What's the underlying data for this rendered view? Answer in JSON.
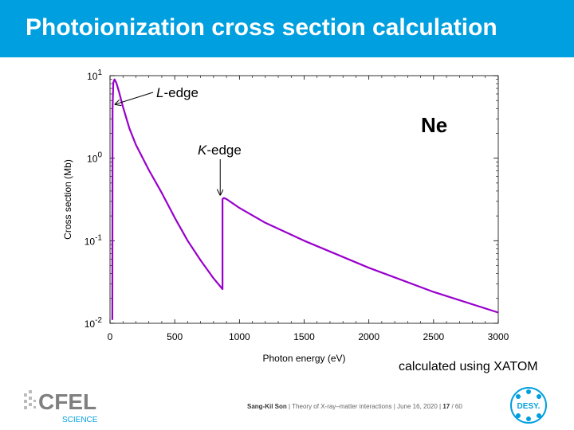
{
  "slide": {
    "title": "Photoionization cross section calculation",
    "note": "calculated using XATOM",
    "footer": {
      "author": "Sang-Kil Son",
      "sep1": " | ",
      "talk": "Theory of X-ray–matter interactions",
      "sep2": " | ",
      "date": "June 16, 2020",
      "sep3": " | ",
      "page": "17",
      "page_sep": " / ",
      "total": "60"
    },
    "logos": {
      "cfel": "CFEL",
      "cfel_sub": "SCIENCE",
      "desy": "DESY."
    }
  },
  "chart_data": {
    "type": "line",
    "xlabel": "Photon energy (eV)",
    "ylabel": "Cross section (Mb)",
    "xlim": [
      0,
      3000
    ],
    "ylim": [
      0.01,
      10
    ],
    "yscale": "log",
    "x_ticks": [
      "0",
      "500",
      "1000",
      "1500",
      "2000",
      "2500",
      "3000"
    ],
    "y_ticks": [
      {
        "base": "10",
        "exp": "1"
      },
      {
        "base": "10",
        "exp": "0"
      },
      {
        "base": "10",
        "exp": "-1"
      },
      {
        "base": "10",
        "exp": "-2"
      }
    ],
    "element_label": "Ne",
    "annotations": [
      {
        "italic": "L",
        "rest": "-edge",
        "target": [
          22,
          4.5
        ]
      },
      {
        "italic": "K",
        "rest": "-edge",
        "target": [
          870,
          0.33
        ]
      }
    ],
    "line_color": "#9900cc",
    "series": [
      {
        "x": [
          18,
          20,
          25,
          35,
          50,
          70,
          100,
          150,
          200,
          300,
          400,
          500,
          600,
          700,
          800,
          869,
          869,
          880,
          900,
          1000,
          1200,
          1500,
          2000,
          2500,
          3000
        ],
        "y": [
          0.011,
          4.0,
          8.2,
          9.0,
          8.1,
          6.3,
          4.2,
          2.3,
          1.45,
          0.72,
          0.38,
          0.19,
          0.1,
          0.058,
          0.035,
          0.026,
          0.32,
          0.33,
          0.32,
          0.25,
          0.165,
          0.1,
          0.047,
          0.024,
          0.0135
        ]
      }
    ]
  }
}
